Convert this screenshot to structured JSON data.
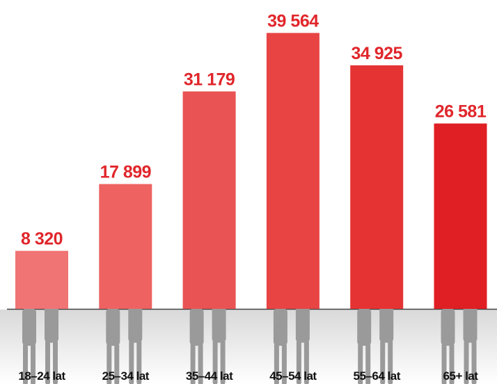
{
  "chart_data": {
    "type": "bar",
    "categories": [
      "18–24 lat",
      "25–34 lat",
      "35–44 lat",
      "45–54 lat",
      "55–64 lat",
      "65+ lat"
    ],
    "values": [
      8320,
      17899,
      31179,
      39564,
      34925,
      26581
    ],
    "value_labels": [
      "8 320",
      "17 899",
      "31 179",
      "39 564",
      "34 925",
      "26 581"
    ],
    "colors": [
      "#f07474",
      "#ee6262",
      "#e95353",
      "#e84444",
      "#e53333",
      "#e01f24"
    ],
    "ylim": [
      0,
      40000
    ]
  }
}
